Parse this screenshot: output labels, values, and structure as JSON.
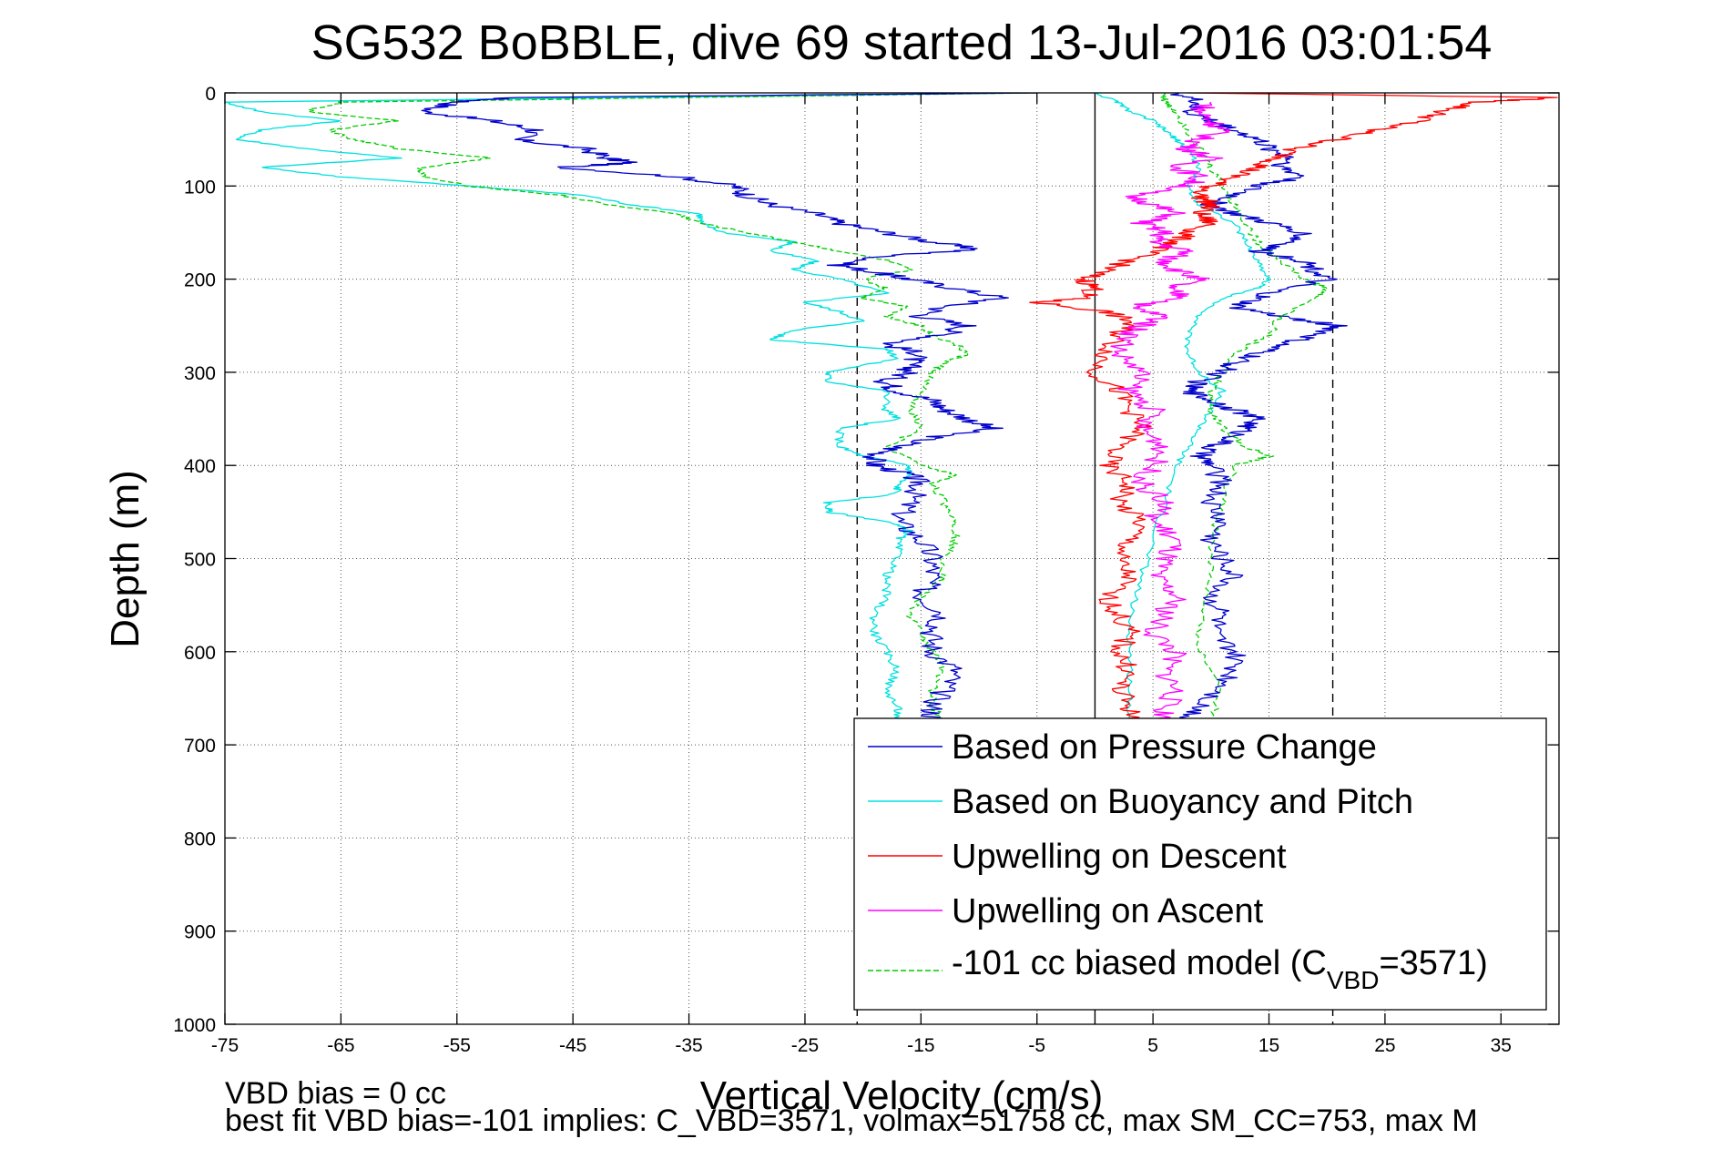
{
  "chart_data": {
    "type": "line",
    "title": "SG532 BoBBLE, dive 69 started 13-Jul-2016 03:01:54",
    "xlabel": "Vertical Velocity (cm/s)",
    "ylabel": "Depth (m)",
    "xlim": [
      -75,
      40
    ],
    "ylim": [
      0,
      1000
    ],
    "y_reversed": true,
    "grid": true,
    "xticks": [
      -75,
      -65,
      -55,
      -45,
      -35,
      -25,
      -15,
      -5,
      5,
      15,
      25,
      35
    ],
    "yticks": [
      0,
      100,
      200,
      300,
      400,
      500,
      600,
      700,
      800,
      900,
      1000
    ],
    "reference_lines": [
      {
        "x": -20.5,
        "style": "dashed",
        "color": "#000000"
      },
      {
        "x": 0,
        "style": "solid",
        "color": "#000000"
      },
      {
        "x": 20.5,
        "style": "dashed",
        "color": "#000000"
      }
    ],
    "legend_position": "bottom-right",
    "series": [
      {
        "name": "Based on Pressure Change",
        "color": "#0000cc",
        "style": "solid",
        "depth": [
          0,
          5,
          10,
          20,
          30,
          40,
          50,
          60,
          70,
          75,
          80,
          90,
          100,
          110,
          120,
          130,
          140,
          150,
          160,
          168,
          175,
          185,
          195,
          200,
          210,
          220,
          230,
          240,
          250,
          260,
          270,
          280,
          290,
          300,
          310,
          320,
          330,
          340,
          350,
          360,
          370,
          380,
          390,
          400,
          410,
          420,
          440,
          460,
          480,
          500,
          520,
          540,
          560,
          580,
          600,
          620,
          640,
          660,
          675
        ],
        "x": [
          -5,
          -50,
          -55,
          -58,
          -52,
          -48,
          -50,
          -44,
          -42,
          -40,
          -46,
          -36,
          -31,
          -30,
          -28,
          -24,
          -22,
          -18,
          -14,
          -10,
          -18,
          -22,
          -18,
          -16,
          -12,
          -8,
          -13,
          -15,
          -11,
          -13,
          -18,
          -15,
          -16,
          -16,
          -18,
          -17,
          -14,
          -13,
          -11,
          -9,
          -14,
          -17,
          -19,
          -19,
          -16,
          -15,
          -16,
          -17,
          -15,
          -14,
          -14,
          -15,
          -13,
          -14,
          -14,
          -12,
          -13,
          -14,
          -14
        ]
      },
      {
        "name": "Based on Buoyancy and Pitch",
        "color": "#00e0e0",
        "style": "solid",
        "depth": [
          0,
          10,
          20,
          30,
          40,
          50,
          60,
          70,
          80,
          90,
          100,
          110,
          120,
          130,
          140,
          150,
          160,
          170,
          180,
          190,
          200,
          215,
          225,
          235,
          245,
          255,
          265,
          275,
          285,
          300,
          310,
          320,
          340,
          350,
          360,
          380,
          390,
          400,
          410,
          420,
          430,
          440,
          450,
          460,
          470,
          480,
          500,
          520,
          540,
          560,
          580,
          600,
          620,
          640,
          660,
          675
        ],
        "x": [
          -5,
          -75,
          -72,
          -65,
          -72,
          -74,
          -68,
          -60,
          -72,
          -65,
          -54,
          -44,
          -40,
          -34,
          -34,
          -32,
          -26,
          -28,
          -24,
          -26,
          -22,
          -18,
          -25,
          -22,
          -20,
          -26,
          -28,
          -18,
          -17,
          -23,
          -23,
          -18,
          -18,
          -17,
          -22,
          -22,
          -20,
          -16,
          -16,
          -17,
          -17,
          -23,
          -23,
          -18,
          -16,
          -17,
          -17,
          -18,
          -18,
          -19,
          -19,
          -18,
          -17,
          -18,
          -17,
          -17
        ]
      },
      {
        "name": "Upwelling on Descent",
        "color": "#ff0000",
        "style": "solid",
        "depth": [
          0,
          5,
          10,
          20,
          30,
          40,
          50,
          60,
          70,
          80,
          90,
          100,
          110,
          120,
          130,
          140,
          150,
          160,
          170,
          180,
          190,
          200,
          210,
          220,
          225,
          235,
          245,
          260,
          280,
          300,
          320,
          340,
          360,
          380,
          400,
          420,
          440,
          460,
          480,
          500,
          520,
          540,
          560,
          580,
          600,
          620,
          640,
          660,
          675
        ],
        "x": [
          8,
          40,
          33,
          30,
          28,
          24,
          21,
          17,
          16,
          14,
          12,
          10,
          9,
          10,
          9,
          10,
          8,
          7,
          5,
          3,
          1,
          -1,
          0,
          -1,
          -5,
          1,
          3,
          2,
          1,
          0,
          2,
          3,
          4,
          2,
          1,
          3,
          2,
          4,
          3,
          2,
          3,
          1,
          2,
          3,
          2,
          3,
          2,
          3,
          3
        ]
      },
      {
        "name": "Upwelling on Ascent",
        "color": "#ff00ff",
        "style": "solid",
        "depth": [
          10,
          20,
          30,
          40,
          50,
          60,
          70,
          80,
          90,
          100,
          110,
          120,
          130,
          140,
          150,
          160,
          170,
          180,
          190,
          200,
          210,
          220,
          230,
          240,
          250,
          260,
          280,
          300,
          320,
          340,
          360,
          380,
          400,
          420,
          440,
          460,
          480,
          500,
          520,
          540,
          560,
          580,
          600,
          620,
          640,
          660,
          675
        ],
        "x": [
          10,
          9,
          10,
          11,
          9,
          8,
          10,
          7,
          9,
          8,
          3,
          5,
          7,
          4,
          6,
          5,
          8,
          6,
          7,
          9,
          6,
          8,
          3,
          6,
          4,
          3,
          2,
          4,
          3,
          5,
          4,
          6,
          5,
          4,
          6,
          5,
          7,
          6,
          5,
          7,
          6,
          5,
          7,
          6,
          7,
          6,
          6
        ]
      },
      {
        "name": "-101 cc biased model (C_VBD=3571)",
        "color": "#00cc00",
        "style": "dashed",
        "depth": [
          0,
          10,
          20,
          30,
          40,
          50,
          60,
          70,
          80,
          90,
          100,
          110,
          120,
          130,
          140,
          150,
          160,
          170,
          180,
          190,
          200,
          210,
          220,
          230,
          240,
          250,
          260,
          270,
          280,
          290,
          300,
          320,
          340,
          360,
          380,
          400,
          410,
          420,
          440,
          460,
          480,
          500,
          520,
          540,
          560,
          580,
          600,
          620,
          640,
          660,
          675
        ],
        "x": [
          -5,
          -65,
          -68,
          -60,
          -66,
          -64,
          -60,
          -52,
          -58,
          -58,
          -54,
          -46,
          -42,
          -36,
          -34,
          -30,
          -26,
          -22,
          -18,
          -16,
          -20,
          -18,
          -20,
          -16,
          -18,
          -15,
          -14,
          -12,
          -11,
          -13,
          -14,
          -15,
          -16,
          -15,
          -18,
          -15,
          -12,
          -14,
          -13,
          -12,
          -12,
          -13,
          -13,
          -15,
          -16,
          -15,
          -14,
          -13,
          -14,
          -14,
          -13
        ]
      },
      {
        "name": "",
        "color": "#0000cc",
        "style": "solid",
        "depth": [
          0,
          10,
          20,
          30,
          40,
          50,
          60,
          70,
          80,
          90,
          100,
          110,
          120,
          130,
          140,
          150,
          160,
          170,
          180,
          190,
          200,
          210,
          220,
          230,
          240,
          250,
          260,
          270,
          280,
          290,
          300,
          310,
          320,
          330,
          340,
          350,
          360,
          370,
          380,
          390,
          400,
          420,
          440,
          460,
          480,
          500,
          520,
          540,
          560,
          580,
          600,
          620,
          640,
          660,
          675
        ],
        "x": [
          7,
          9,
          8,
          10,
          12,
          14,
          15,
          17,
          16,
          18,
          14,
          12,
          10,
          12,
          15,
          18,
          17,
          14,
          18,
          19,
          20,
          16,
          14,
          12,
          16,
          21,
          19,
          16,
          14,
          12,
          11,
          9,
          8,
          10,
          12,
          14,
          13,
          12,
          10,
          9,
          10,
          11,
          10,
          11,
          10,
          11,
          12,
          10,
          11,
          10,
          12,
          12,
          11,
          9,
          8
        ]
      },
      {
        "name": "",
        "color": "#00e0e0",
        "style": "solid",
        "depth": [
          0,
          10,
          20,
          30,
          40,
          50,
          60,
          80,
          100,
          120,
          140,
          160,
          180,
          200,
          210,
          220,
          240,
          260,
          280,
          300,
          320,
          340,
          360,
          380,
          400,
          440,
          480,
          520,
          560,
          600,
          640,
          675
        ],
        "x": [
          0,
          2,
          3,
          5,
          6,
          7,
          8,
          9,
          8,
          9,
          12,
          13,
          14,
          15,
          14,
          11,
          9,
          8,
          8,
          9,
          11,
          10,
          9,
          8,
          7,
          6,
          5,
          4,
          3,
          3,
          3,
          3
        ]
      },
      {
        "name": "",
        "color": "#00cc00",
        "style": "dashed",
        "depth": [
          0,
          10,
          20,
          40,
          60,
          80,
          100,
          120,
          140,
          160,
          180,
          200,
          210,
          220,
          240,
          260,
          280,
          300,
          320,
          340,
          360,
          380,
          390,
          400,
          440,
          480,
          520,
          560,
          600,
          640,
          675
        ],
        "x": [
          6,
          6,
          7,
          8,
          9,
          10,
          11,
          12,
          13,
          14,
          16,
          18,
          20,
          19,
          16,
          15,
          12,
          11,
          10,
          10,
          11,
          13,
          15,
          12,
          11,
          10,
          10,
          9,
          9,
          11,
          10
        ]
      }
    ],
    "annotations": [
      "VBD bias = 0 cc",
      "best fit VBD bias=-101 implies: C_VBD=3571, volmax=51758 cc, max SM_CC=753, max M"
    ]
  },
  "legend": {
    "items": [
      {
        "label": "Based on Pressure Change",
        "color": "#0000cc",
        "style": "solid"
      },
      {
        "label": "Based on Buoyancy and Pitch",
        "color": "#00e0e0",
        "style": "solid"
      },
      {
        "label": "Upwelling on Descent",
        "color": "#ff0000",
        "style": "solid"
      },
      {
        "label": "Upwelling on Ascent",
        "color": "#ff00ff",
        "style": "solid"
      },
      {
        "label_main": "-101 cc biased model (C",
        "label_sub": "VBD",
        "label_tail": "=3571)",
        "color": "#00cc00",
        "style": "dashed"
      }
    ]
  }
}
